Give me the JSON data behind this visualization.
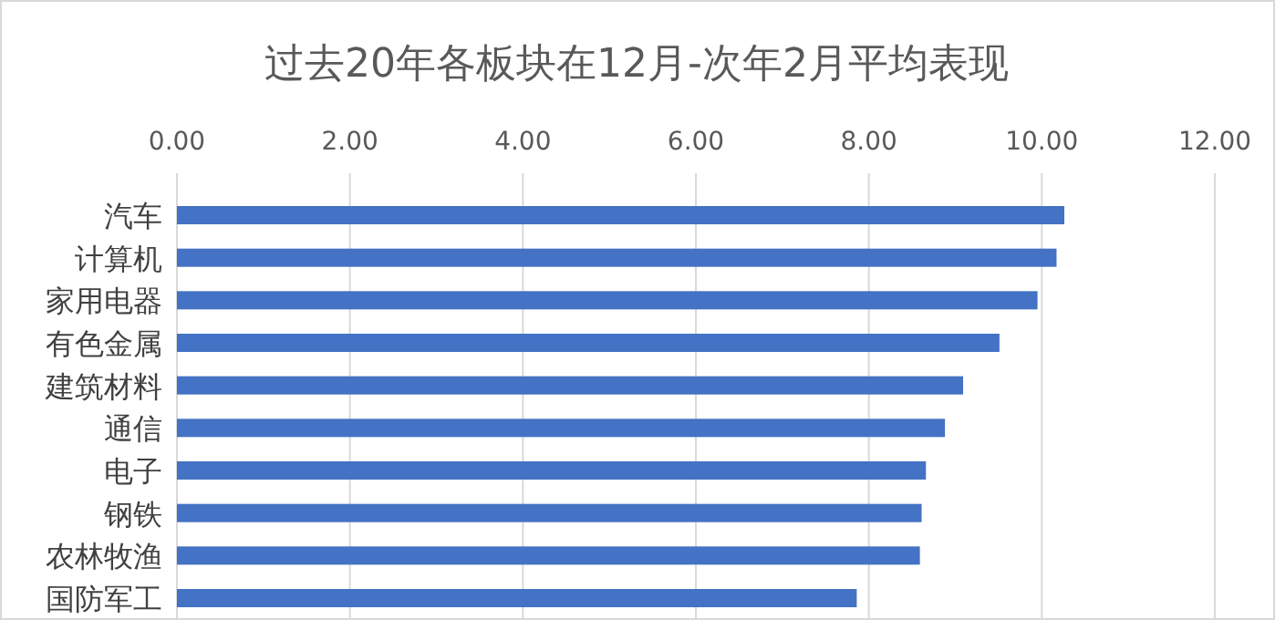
{
  "chart_data": {
    "type": "bar",
    "orientation": "horizontal",
    "title": "过去20年各板块在12月-次年2月平均表现",
    "categories": [
      "汽车",
      "计算机",
      "家用电器",
      "有色金属",
      "建筑材料",
      "通信",
      "电子",
      "钢铁",
      "农林牧渔",
      "国防军工"
    ],
    "values": [
      10.26,
      10.17,
      9.95,
      9.51,
      9.09,
      8.88,
      8.66,
      8.61,
      8.59,
      7.86
    ],
    "color": "#4472c4",
    "xlim": [
      0,
      12
    ],
    "xticks": [
      {
        "value": 0,
        "label": "0.00"
      },
      {
        "value": 2,
        "label": "2.00"
      },
      {
        "value": 4,
        "label": "4.00"
      },
      {
        "value": 6,
        "label": "6.00"
      },
      {
        "value": 8,
        "label": "8.00"
      },
      {
        "value": 10,
        "label": "10.00"
      },
      {
        "value": 12,
        "label": "12.00"
      }
    ],
    "grid": "x"
  }
}
